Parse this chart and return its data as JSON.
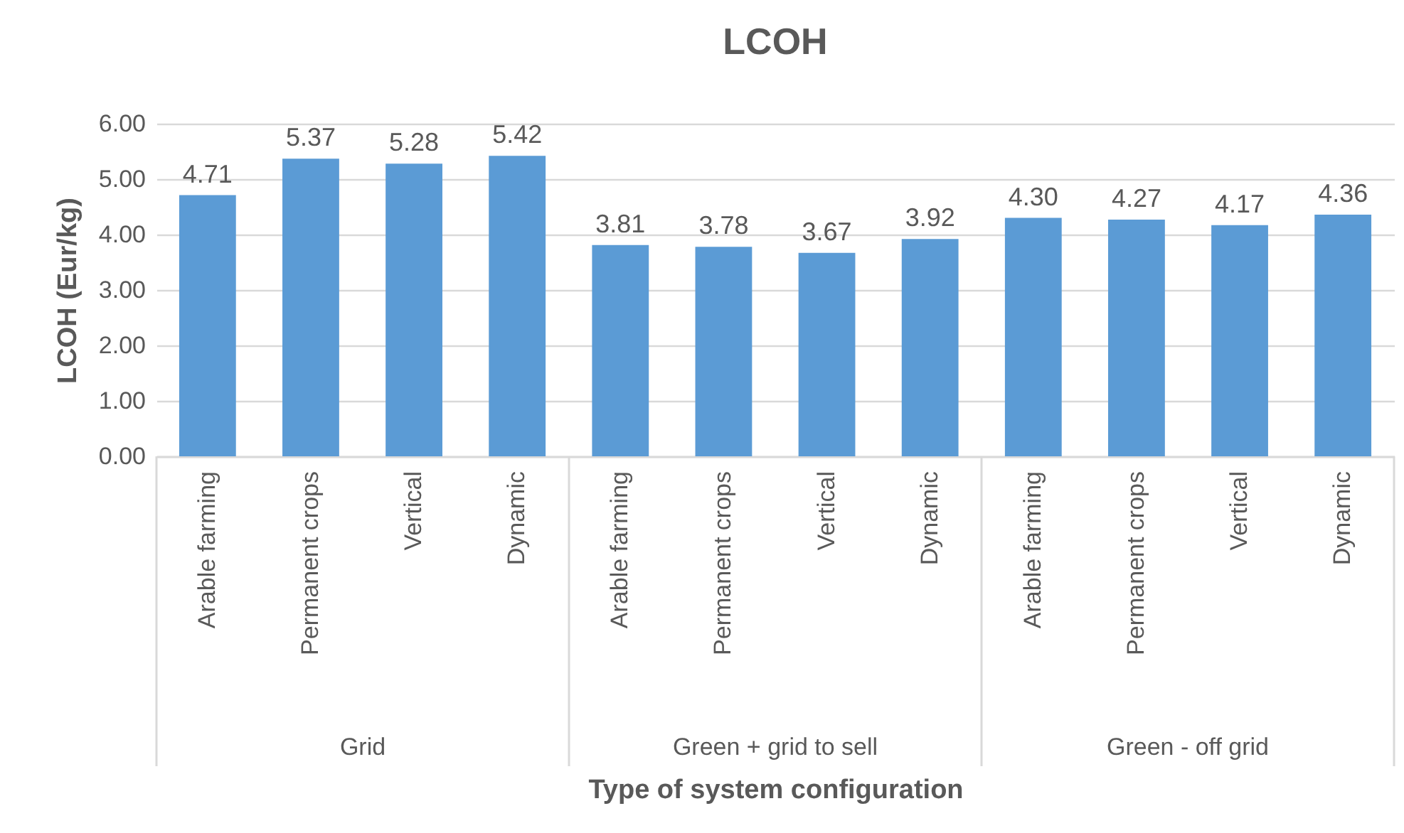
{
  "chart_data": {
    "type": "bar",
    "title": "LCOH",
    "xlabel": "Type of system configuration",
    "ylabel": "LCOH (Eur/kg)",
    "categories": [
      "Arable farming",
      "Permanent crops",
      "Vertical",
      "Dynamic",
      "Arable farming",
      "Permanent crops",
      "Vertical",
      "Dynamic",
      "Arable farming",
      "Permanent crops",
      "Vertical",
      "Dynamic"
    ],
    "values": [
      4.71,
      5.37,
      5.28,
      5.42,
      3.81,
      3.78,
      3.67,
      3.92,
      4.3,
      4.27,
      4.17,
      4.36
    ],
    "value_labels": [
      "4.71",
      "5.37",
      "5.28",
      "5.42",
      "3.81",
      "3.78",
      "3.67",
      "3.92",
      "4.30",
      "4.27",
      "4.17",
      "4.36"
    ],
    "color": "#5b9bd5",
    "ylim": [
      0,
      6
    ],
    "yticks": [
      {
        "value": 0,
        "label": "0.00"
      },
      {
        "value": 1,
        "label": "1.00"
      },
      {
        "value": 2,
        "label": "2.00"
      },
      {
        "value": 3,
        "label": "3.00"
      },
      {
        "value": 4,
        "label": "4.00"
      },
      {
        "value": 5,
        "label": "5.00"
      },
      {
        "value": 6,
        "label": "6.00"
      }
    ],
    "grid": "y",
    "annotations": [
      "Grid",
      "Green + grid to sell",
      "Green - off grid"
    ]
  }
}
